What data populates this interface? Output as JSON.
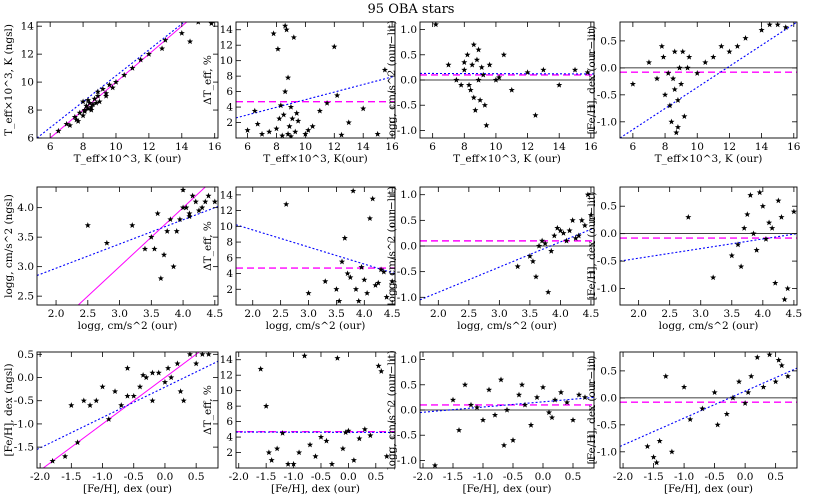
{
  "title": "95 OBA stars",
  "colors": {
    "star": "#000000",
    "fit": "#0000ff",
    "mean": "#ff00ff",
    "zero": "#000000"
  },
  "chart_data": [
    {
      "type": "scatter",
      "xlabel": "T_eff×10^3, K (our)",
      "ylabel": "T_eff×10^3, K (ngsl)",
      "xlim": [
        5.2,
        16.2
      ],
      "ylim": [
        6,
        14.3
      ],
      "xticks": [
        6,
        8,
        10,
        12,
        14,
        16
      ],
      "yticks": [
        6,
        8,
        10,
        12,
        14
      ],
      "x": [
        6.5,
        7.2,
        7.5,
        7.6,
        7.8,
        8.0,
        8.1,
        8.2,
        8.3,
        8.4,
        8.5,
        8.6,
        8.7,
        8.8,
        8.9,
        9.0,
        9.2,
        9.4,
        9.6,
        9.8,
        10.0,
        10.5,
        11.0,
        11.5,
        12.0,
        12.8,
        13.0,
        14.0,
        14.5,
        15.0,
        15.8,
        8.1,
        8.3,
        8.5,
        8.9,
        9.4,
        7.7,
        7.0,
        8.0
      ],
      "y": [
        6.5,
        6.9,
        7.5,
        7.3,
        7.8,
        7.6,
        8.0,
        8.3,
        8.1,
        8.5,
        8.2,
        8.4,
        8.8,
        8.5,
        9.0,
        8.6,
        9.5,
        9.2,
        9.8,
        9.6,
        10.0,
        10.5,
        11.0,
        11.6,
        12.0,
        12.4,
        13.0,
        13.5,
        12.9,
        14.3,
        14.2,
        7.9,
        8.7,
        8.0,
        9.3,
        9.0,
        7.2,
        7.0,
        8.6
      ],
      "fit": [
        [
          5.2,
          6.0
        ],
        [
          16.2,
          16.2
        ]
      ],
      "identity": [
        [
          5.2,
          5.2
        ],
        [
          16.2,
          16.2
        ]
      ]
    },
    {
      "type": "scatter",
      "xlabel": "T_eff×10^3, K(our)",
      "ylabel": "ΔT_eff, %",
      "xlim": [
        5.2,
        16.2
      ],
      "ylim": [
        0,
        15
      ],
      "xticks": [
        6,
        8,
        10,
        12,
        14,
        16
      ],
      "yticks": [
        2,
        4,
        6,
        8,
        10,
        12,
        14
      ],
      "x": [
        6.0,
        6.5,
        7.0,
        7.5,
        8.0,
        8.2,
        8.4,
        8.5,
        8.6,
        8.7,
        8.8,
        8.9,
        9.0,
        9.2,
        9.5,
        10.0,
        10.5,
        11.0,
        11.5,
        12.0,
        12.5,
        13.0,
        14.0,
        15.0,
        15.5,
        8.3,
        8.8,
        9.1,
        10.2,
        9.3,
        12.2,
        7.8,
        8.6,
        9.4,
        6.7,
        9.0,
        8.1
      ],
      "y": [
        1.0,
        3.5,
        0.5,
        0.8,
        1.2,
        2.5,
        0.3,
        3.0,
        14.5,
        14.0,
        0.5,
        1.5,
        4.0,
        13.0,
        2.2,
        0.5,
        1.5,
        3.5,
        4.5,
        11.8,
        0.4,
        2.0,
        3.8,
        0.5,
        8.8,
        4.2,
        7.8,
        2.5,
        1.0,
        0.8,
        5.5,
        13.5,
        6.0,
        3.2,
        1.8,
        0.2,
        11.5
      ],
      "mean": 4.7,
      "fit": [
        [
          5.2,
          2.6
        ],
        [
          16.2,
          8.0
        ]
      ]
    },
    {
      "type": "scatter",
      "xlabel": "T_eff×10^3, K (our)",
      "ylabel": "logg, cm/s^2 (our−lit)",
      "xlim": [
        5.2,
        16.2
      ],
      "ylim": [
        -1.15,
        1.15
      ],
      "xticks": [
        6,
        8,
        10,
        12,
        14,
        16
      ],
      "yticks": [
        -1.0,
        -0.5,
        0.0,
        0.5,
        1.0
      ],
      "x": [
        6.2,
        7.0,
        7.5,
        8.0,
        8.2,
        8.4,
        8.5,
        8.6,
        8.7,
        8.8,
        8.9,
        9.0,
        9.2,
        9.4,
        9.6,
        10.0,
        10.5,
        11.0,
        12.0,
        13.0,
        14.0,
        15.0,
        15.8,
        8.3,
        8.6,
        8.9,
        9.1,
        7.8,
        10.2,
        8.0,
        9.3,
        12.5
      ],
      "y": [
        1.1,
        0.3,
        0.0,
        0.2,
        0.5,
        -0.2,
        0.3,
        0.7,
        -0.6,
        0.4,
        0.0,
        -0.4,
        0.1,
        -0.9,
        0.3,
        0.0,
        0.5,
        -0.2,
        0.15,
        0.2,
        -0.1,
        0.2,
        0.15,
        -0.1,
        -0.35,
        0.6,
        0.25,
        -0.1,
        0.05,
        0.35,
        -0.5,
        -0.7
      ],
      "mean": 0.1,
      "fit": [
        [
          5.2,
          0.13
        ],
        [
          16.2,
          0.12
        ]
      ]
    },
    {
      "type": "scatter",
      "xlabel": "T_eff×10^3, K (our)",
      "ylabel": "[Fe/H], dex (our−lit)",
      "xlim": [
        5.2,
        16.2
      ],
      "ylim": [
        -1.3,
        0.85
      ],
      "xticks": [
        6,
        8,
        10,
        12,
        14,
        16
      ],
      "yticks": [
        -1.0,
        -0.5,
        0.0,
        0.5
      ],
      "x": [
        6.0,
        7.0,
        7.5,
        7.8,
        8.0,
        8.2,
        8.4,
        8.5,
        8.6,
        8.7,
        8.8,
        8.9,
        9.0,
        9.2,
        9.5,
        10.0,
        10.5,
        11.0,
        11.5,
        12.0,
        13.0,
        14.0,
        15.0,
        15.5,
        8.3,
        8.6,
        9.4,
        7.9,
        12.5,
        14.5,
        8.8,
        9.1
      ],
      "y": [
        -0.3,
        0.1,
        -0.2,
        0.4,
        -0.5,
        -0.1,
        -1.0,
        -0.2,
        0.3,
        -1.2,
        -0.6,
        0.0,
        -0.3,
        -0.9,
        0.2,
        -0.1,
        0.1,
        0.2,
        0.4,
        0.3,
        0.55,
        0.7,
        0.8,
        0.75,
        -0.7,
        -0.4,
        0.0,
        0.2,
        0.4,
        0.8,
        -1.1,
        0.3
      ],
      "mean": -0.08,
      "fit": [
        [
          5.2,
          -1.3
        ],
        [
          16.2,
          0.85
        ]
      ]
    },
    {
      "type": "scatter",
      "xlabel": "logg, cm/s^2 (our)",
      "ylabel": "logg, cm/s^2 (ngsl)",
      "xlim": [
        1.7,
        4.55
      ],
      "ylim": [
        2.35,
        4.35
      ],
      "xticks": [
        2.0,
        2.5,
        3.0,
        3.5,
        4.0,
        4.5
      ],
      "yticks": [
        2.5,
        3.0,
        3.5,
        4.0
      ],
      "x": [
        2.5,
        2.8,
        3.2,
        3.4,
        3.5,
        3.6,
        3.7,
        3.8,
        3.9,
        4.0,
        4.1,
        4.2,
        4.3,
        4.4,
        4.5,
        3.75,
        3.95,
        4.05,
        4.25,
        3.85,
        4.15,
        3.65,
        4.35,
        3.55,
        4.0,
        4.1
      ],
      "y": [
        3.7,
        3.4,
        3.7,
        3.3,
        3.5,
        3.9,
        3.2,
        3.8,
        3.6,
        4.0,
        3.9,
        4.1,
        4.0,
        4.2,
        4.1,
        3.6,
        3.8,
        4.0,
        3.95,
        3.0,
        4.2,
        2.8,
        4.1,
        3.3,
        4.3,
        3.85
      ],
      "fit": [
        [
          1.7,
          2.85
        ],
        [
          4.55,
          4.02
        ]
      ],
      "identity": [
        [
          2.35,
          2.35
        ],
        [
          4.35,
          4.35
        ]
      ]
    },
    {
      "type": "scatter",
      "xlabel": "logg, cm/s^2 (our)",
      "ylabel": "ΔT_eff, %",
      "xlim": [
        1.7,
        4.55
      ],
      "ylim": [
        0,
        15
      ],
      "xticks": [
        2.0,
        2.5,
        3.0,
        3.5,
        4.0,
        4.5
      ],
      "yticks": [
        2,
        4,
        6,
        8,
        10,
        12,
        14
      ],
      "x": [
        2.6,
        3.0,
        3.3,
        3.5,
        3.6,
        3.7,
        3.8,
        3.9,
        4.0,
        4.1,
        4.2,
        4.3,
        4.4,
        4.5,
        3.65,
        3.85,
        3.95,
        4.05,
        4.25,
        4.35,
        3.55,
        3.75,
        4.15
      ],
      "y": [
        12.8,
        1.5,
        3.0,
        2.0,
        5.5,
        4.0,
        14.5,
        0.5,
        3.2,
        11.0,
        2.5,
        4.5,
        1.0,
        3.0,
        8.5,
        2.0,
        4.8,
        1.5,
        2.8,
        4.2,
        0.5,
        3.5,
        13.5
      ],
      "mean": 4.7,
      "fit": [
        [
          1.7,
          10.2
        ],
        [
          4.55,
          4.0
        ]
      ]
    },
    {
      "type": "scatter",
      "xlabel": "logg, cm/s^2 (our)",
      "ylabel": "logg, cm/s^2 (our−lit)",
      "xlim": [
        1.7,
        4.55
      ],
      "ylim": [
        -1.15,
        1.15
      ],
      "xticks": [
        2.0,
        2.5,
        3.0,
        3.5,
        4.0,
        4.5
      ],
      "yticks": [
        -1.0,
        -0.5,
        0.0,
        0.5,
        1.0
      ],
      "x": [
        3.3,
        3.5,
        3.6,
        3.7,
        3.8,
        3.9,
        4.0,
        4.1,
        4.2,
        4.3,
        4.4,
        4.5,
        3.65,
        3.85,
        3.95,
        4.05,
        4.25,
        4.35,
        3.55,
        3.75,
        4.15,
        4.45
      ],
      "y": [
        -0.4,
        -0.2,
        -0.6,
        0.1,
        -0.9,
        0.2,
        0.3,
        0.1,
        0.5,
        0.2,
        0.4,
        0.6,
        0.0,
        -0.1,
        0.35,
        0.25,
        0.15,
        0.5,
        -0.3,
        0.05,
        0.3,
        1.0
      ],
      "mean": 0.1,
      "fit": [
        [
          1.7,
          -1.05
        ],
        [
          4.55,
          0.35
        ]
      ]
    },
    {
      "type": "scatter",
      "xlabel": "logg, cm/s^2 (our)",
      "ylabel": "[Fe/H], dex (our−lit)",
      "xlim": [
        1.7,
        4.55
      ],
      "ylim": [
        -1.3,
        0.85
      ],
      "xticks": [
        2.0,
        2.5,
        3.0,
        3.5,
        4.0,
        4.5
      ],
      "yticks": [
        -1.0,
        -0.5,
        0.0,
        0.5
      ],
      "x": [
        2.8,
        3.2,
        3.5,
        3.6,
        3.7,
        3.8,
        3.9,
        4.0,
        4.1,
        4.2,
        4.3,
        4.4,
        4.5,
        3.65,
        3.85,
        3.95,
        4.05,
        4.25,
        4.35,
        3.75,
        4.15
      ],
      "y": [
        0.3,
        -0.8,
        -0.4,
        -0.2,
        0.1,
        0.7,
        -0.3,
        0.5,
        0.2,
        -0.9,
        0.3,
        -1.0,
        0.4,
        -0.6,
        0.0,
        0.75,
        -0.1,
        0.6,
        -1.2,
        0.35,
        0.1
      ],
      "mean": -0.08,
      "fit": [
        [
          1.7,
          -0.5
        ],
        [
          4.55,
          0.0
        ]
      ]
    },
    {
      "type": "scatter",
      "xlabel": "[Fe/H], dex (our)",
      "ylabel": "[Fe/H], dex (ngsl)",
      "xlim": [
        -2.05,
        0.85
      ],
      "ylim": [
        -1.95,
        0.55
      ],
      "xticks": [
        -2.0,
        -1.5,
        -1.0,
        -0.5,
        0.0,
        0.5
      ],
      "yticks": [
        -1.5,
        -1.0,
        -0.5,
        0.0,
        0.5
      ],
      "x": [
        -1.8,
        -1.6,
        -1.5,
        -1.4,
        -1.3,
        -1.2,
        -1.0,
        -0.9,
        -0.8,
        -0.7,
        -0.6,
        -0.5,
        -0.4,
        -0.3,
        -0.2,
        -0.1,
        0.0,
        0.1,
        0.2,
        0.3,
        0.4,
        0.5,
        0.6,
        0.7,
        -0.6,
        -0.2,
        0.05,
        0.25,
        -1.1,
        -0.35
      ],
      "y": [
        -1.8,
        -1.7,
        -0.6,
        -1.4,
        -0.5,
        -0.6,
        -0.2,
        -0.9,
        -0.3,
        -0.6,
        0.2,
        -0.4,
        -0.2,
        0.0,
        -0.5,
        0.1,
        -0.1,
        0.0,
        0.3,
        -0.5,
        0.5,
        0.3,
        0.5,
        0.5,
        -0.4,
        0.1,
        0.2,
        -0.3,
        -0.5,
        0.05
      ],
      "fit": [
        [
          -2.05,
          -1.55
        ],
        [
          0.85,
          0.35
        ]
      ],
      "identity": [
        [
          -1.95,
          -1.95
        ],
        [
          0.55,
          0.55
        ]
      ]
    },
    {
      "type": "scatter",
      "xlabel": "[Fe/H], dex (our)",
      "ylabel": "ΔT_eff, %",
      "xlim": [
        -2.05,
        0.85
      ],
      "ylim": [
        0,
        15
      ],
      "xticks": [
        -2.0,
        -1.5,
        -1.0,
        -0.5,
        0.0,
        0.5
      ],
      "yticks": [
        2,
        4,
        6,
        8,
        10,
        12,
        14
      ],
      "x": [
        -1.6,
        -1.5,
        -1.4,
        -1.3,
        -1.2,
        -1.0,
        -0.9,
        -0.8,
        -0.6,
        -0.5,
        -0.4,
        -0.3,
        -0.2,
        -0.1,
        0.0,
        0.1,
        0.2,
        0.4,
        0.6,
        0.7,
        -1.45,
        -0.7,
        0.3,
        0.55,
        -1.1,
        -0.05
      ],
      "y": [
        12.8,
        8.0,
        1.0,
        2.5,
        4.5,
        0.5,
        2.0,
        14.5,
        1.5,
        4.0,
        3.5,
        0.5,
        14.2,
        2.5,
        4.8,
        1.0,
        3.8,
        4.2,
        12.5,
        1.5,
        2.0,
        3.0,
        5.0,
        13.2,
        0.5,
        4.6
      ],
      "mean": 4.7,
      "fit": [
        [
          -2.05,
          4.65
        ],
        [
          0.85,
          4.6
        ]
      ]
    },
    {
      "type": "scatter",
      "xlabel": "[Fe/H], dex (our)",
      "ylabel": "logg, cm/s^2 (our−lit)",
      "xlim": [
        -2.05,
        0.85
      ],
      "ylim": [
        -1.15,
        1.15
      ],
      "xticks": [
        -2.0,
        -1.5,
        -1.0,
        -0.5,
        0.0,
        0.5
      ],
      "yticks": [
        -1.0,
        -0.5,
        0.0,
        0.5,
        1.0
      ],
      "x": [
        -1.8,
        -1.5,
        -1.4,
        -1.3,
        -1.2,
        -1.0,
        -0.9,
        -0.8,
        -0.7,
        -0.6,
        -0.5,
        -0.4,
        -0.3,
        -0.2,
        -0.1,
        0.0,
        0.1,
        0.2,
        0.3,
        0.4,
        0.5,
        0.6,
        0.7,
        -1.1,
        -0.35,
        0.15,
        -0.65
      ],
      "y": [
        -1.1,
        0.2,
        -0.4,
        0.5,
        0.1,
        -0.2,
        0.4,
        -0.1,
        0.6,
        0.0,
        -0.6,
        0.3,
        0.1,
        -0.3,
        0.25,
        0.45,
        -0.05,
        0.2,
        0.35,
        0.15,
        -0.2,
        0.3,
        0.25,
        0.05,
        0.5,
        -0.15,
        -0.7
      ],
      "mean": 0.1,
      "fit": [
        [
          -2.05,
          -0.05
        ],
        [
          0.85,
          0.25
        ]
      ]
    },
    {
      "type": "scatter",
      "xlabel": "[Fe/H], dex (our)",
      "ylabel": "[Fe/H], dex (our−lit)",
      "xlim": [
        -2.05,
        0.85
      ],
      "ylim": [
        -1.3,
        0.85
      ],
      "xticks": [
        -2.0,
        -1.5,
        -1.0,
        -0.5,
        0.0,
        0.5
      ],
      "yticks": [
        -1.0,
        -0.5,
        0.0,
        0.5
      ],
      "x": [
        -1.6,
        -1.5,
        -1.4,
        -1.3,
        -1.2,
        -1.0,
        -0.9,
        -0.7,
        -0.5,
        -0.3,
        -0.2,
        -0.1,
        0.0,
        0.1,
        0.2,
        0.3,
        0.4,
        0.5,
        0.6,
        0.7,
        -1.45,
        -0.45,
        0.05,
        0.55
      ],
      "y": [
        -0.9,
        -1.1,
        -0.8,
        0.4,
        -1.0,
        0.2,
        -0.4,
        -0.2,
        0.1,
        -0.3,
        0.0,
        0.3,
        -0.1,
        0.4,
        0.75,
        0.2,
        0.8,
        0.3,
        0.6,
        0.4,
        -1.2,
        -0.5,
        0.1,
        0.7
      ],
      "mean": -0.08,
      "fit": [
        [
          -2.05,
          -0.9
        ],
        [
          0.85,
          0.55
        ]
      ]
    }
  ]
}
